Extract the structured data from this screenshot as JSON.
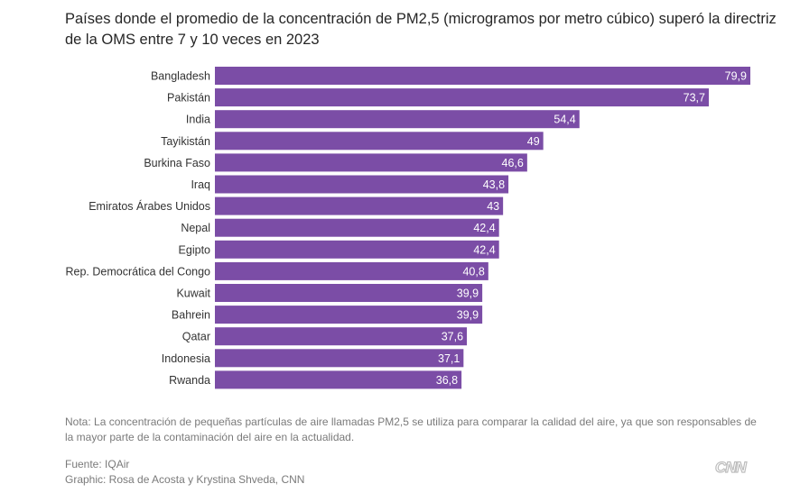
{
  "title": "Países donde el promedio de la concentración de PM2,5 (microgramos por metro cúbico) superó la directriz de la OMS entre 7 y 10 veces en 2023",
  "note": "Nota: La concentración de pequeñas partículas de aire llamadas PM2,5 se utiliza para comparar la calidad del aire, ya que son responsables de la mayor parte de la contaminación del aire en la actualidad.",
  "source": "Fuente: IQAir",
  "credit": "Graphic: Rosa de Acosta y Krystina Shveda, CNN",
  "logo": "CNN",
  "colors": {
    "bar": "#7b4da6",
    "value_label": "#ffffff"
  },
  "chart_data": {
    "type": "bar",
    "orientation": "horizontal",
    "categories": [
      "Bangladesh",
      "Pakistán",
      "India",
      "Tayikistán",
      "Burkina Faso",
      "Iraq",
      "Emiratos Árabes Unidos",
      "Nepal",
      "Egipto",
      "Rep. Democrática del Congo",
      "Kuwait",
      "Bahrein",
      "Qatar",
      "Indonesia",
      "Rwanda"
    ],
    "values": [
      79.9,
      73.7,
      54.4,
      49,
      46.6,
      43.8,
      43,
      42.4,
      42.4,
      40.8,
      39.9,
      39.9,
      37.6,
      37.1,
      36.8
    ],
    "value_labels": [
      "79,9",
      "73,7",
      "54,4",
      "49",
      "46,6",
      "43,8",
      "43",
      "42,4",
      "42,4",
      "40,8",
      "39,9",
      "39,9",
      "37,6",
      "37,1",
      "36,8"
    ],
    "xlim": [
      0,
      79.9
    ],
    "grid": false,
    "legend": "none"
  }
}
